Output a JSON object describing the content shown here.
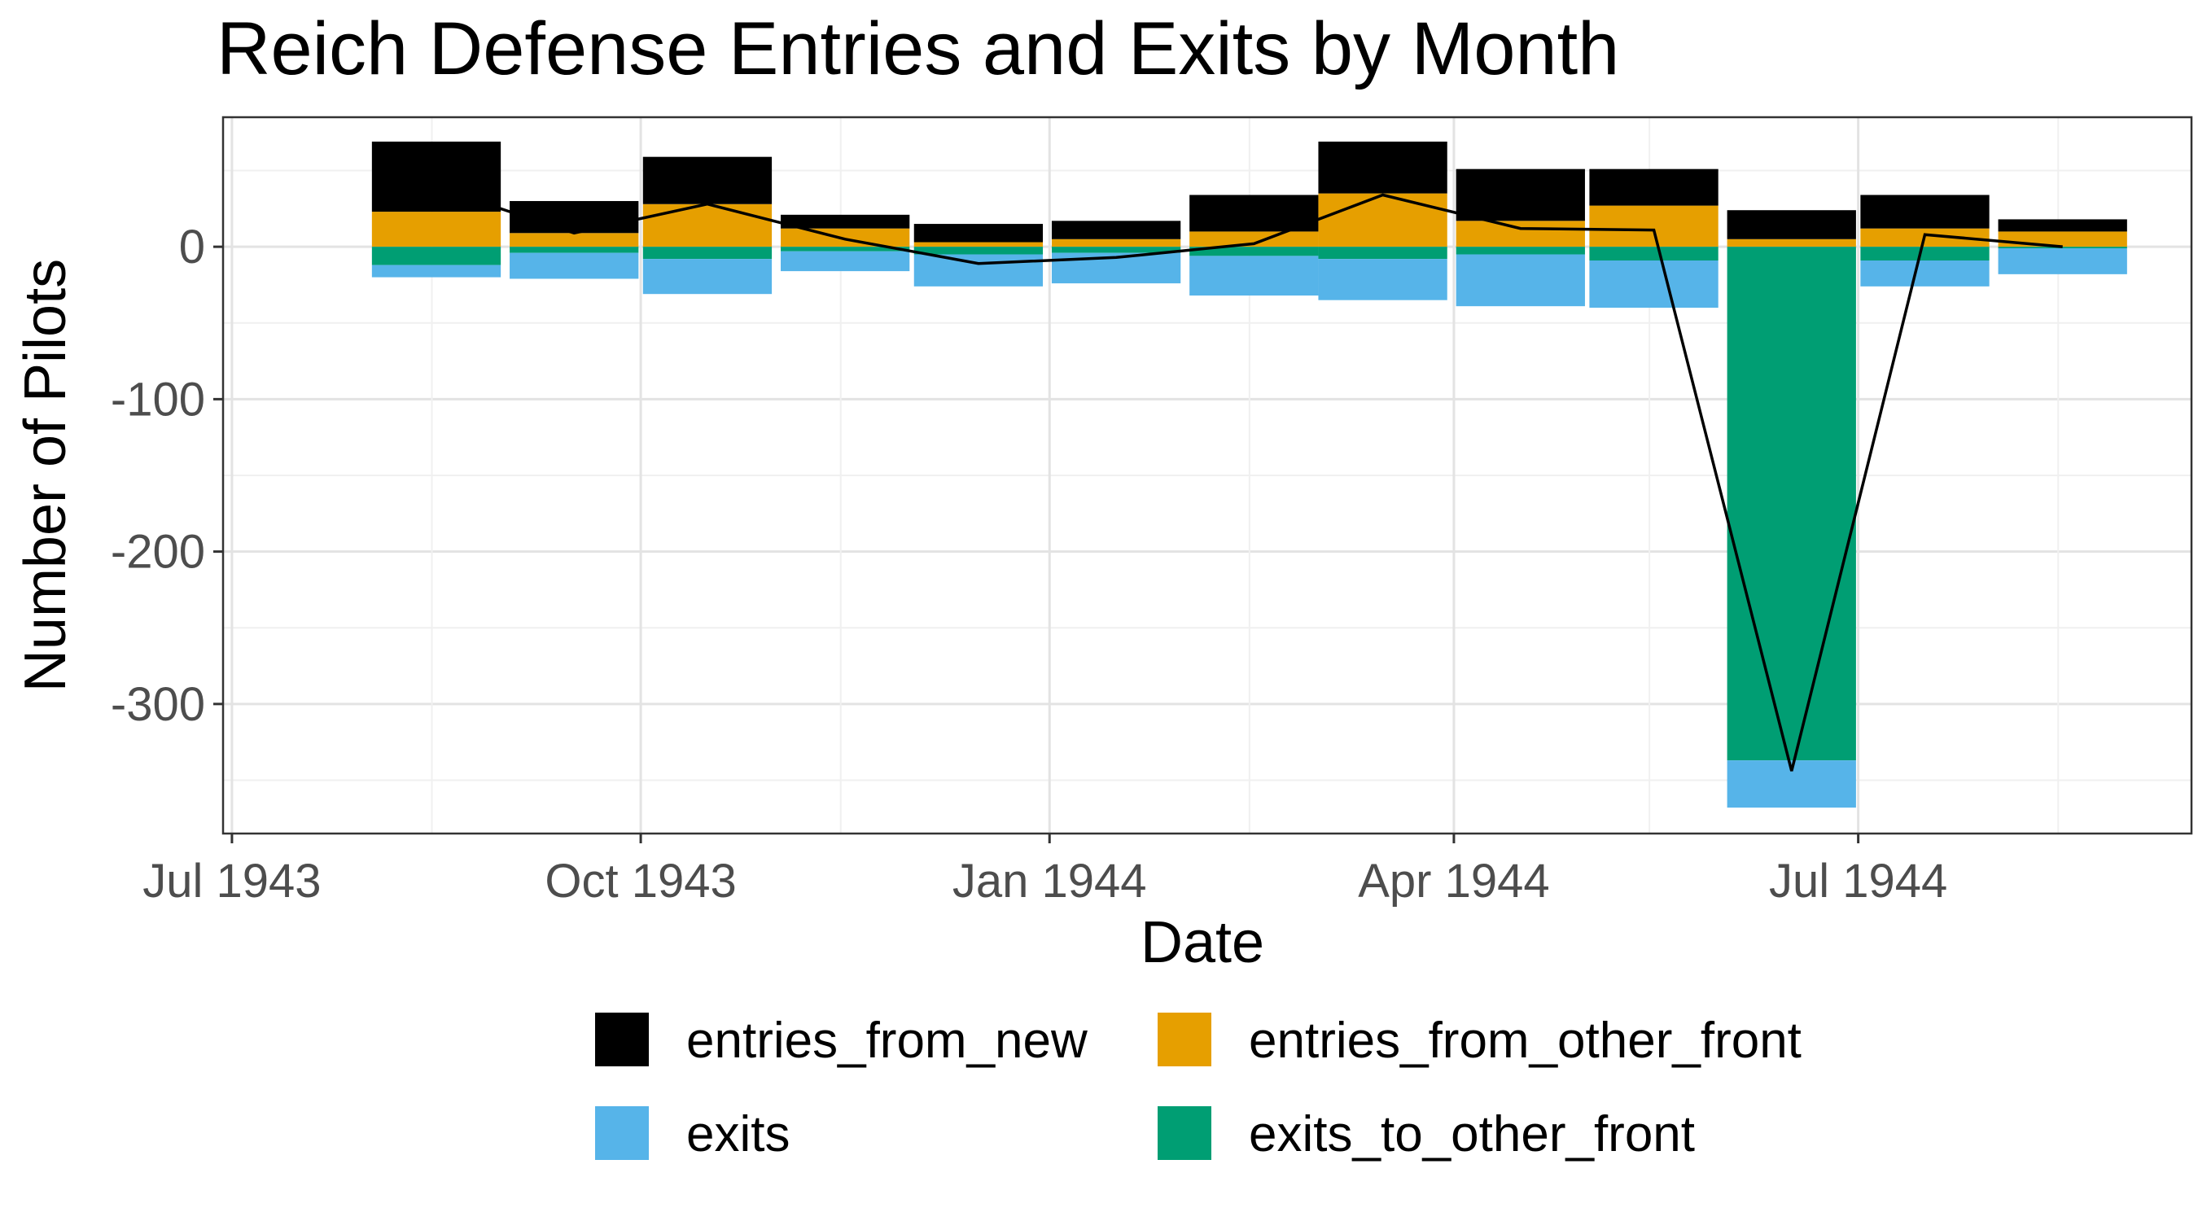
{
  "chart_data": {
    "type": "bar",
    "title": "Reich Defense Entries and Exits by Month",
    "xlabel": "Date",
    "ylabel": "Number of Pilots",
    "ylim": [
      -385,
      85
    ],
    "yticks": [
      0,
      -100,
      -200,
      -300
    ],
    "xlim": [
      "1943-06-29",
      "1944-09-14"
    ],
    "xticks": [
      {
        "date": "1943-07-01",
        "label": "Jul 1943"
      },
      {
        "date": "1943-10-01",
        "label": "Oct 1943"
      },
      {
        "date": "1944-01-01",
        "label": "Jan 1944"
      },
      {
        "date": "1944-04-01",
        "label": "Apr 1944"
      },
      {
        "date": "1944-07-01",
        "label": "Jul 1944"
      }
    ],
    "minor_ticks": [
      "1943-08-15",
      "1943-11-15",
      "1944-02-15",
      "1944-05-15",
      "1944-08-15"
    ],
    "grid": true,
    "legend_position": "bottom",
    "stacked": true,
    "months": [
      "1943-08-01",
      "1943-09-01",
      "1943-10-01",
      "1943-11-01",
      "1943-12-01",
      "1944-01-01",
      "1944-02-01",
      "1944-03-01",
      "1944-04-01",
      "1944-05-01",
      "1944-06-01",
      "1944-07-01",
      "1944-08-01"
    ],
    "series": [
      {
        "name": "entries_from_new",
        "color": "#000000",
        "values": [
          46,
          21,
          31,
          9,
          12,
          12,
          24,
          34,
          34,
          24,
          19,
          22,
          8
        ]
      },
      {
        "name": "entries_from_other_front",
        "color": "#E69F00",
        "values": [
          23,
          9,
          28,
          12,
          3,
          5,
          10,
          35,
          17,
          27,
          5,
          12,
          10
        ]
      },
      {
        "name": "exits",
        "color": "#56B4E9",
        "values": [
          -8,
          -17,
          -23,
          -13,
          -21,
          -20,
          -26,
          -27,
          -34,
          -31,
          -31,
          -17,
          -17
        ]
      },
      {
        "name": "exits_to_other_front",
        "color": "#009E73",
        "values": [
          -12,
          -4,
          -8,
          -3,
          -5,
          -4,
          -6,
          -8,
          -5,
          -9,
          -337,
          -9,
          -1
        ]
      }
    ],
    "net_line": {
      "color": "#000000",
      "values": [
        39,
        9,
        28,
        5,
        -11,
        -7,
        2,
        34,
        12,
        11,
        -344,
        8,
        0
      ]
    }
  }
}
